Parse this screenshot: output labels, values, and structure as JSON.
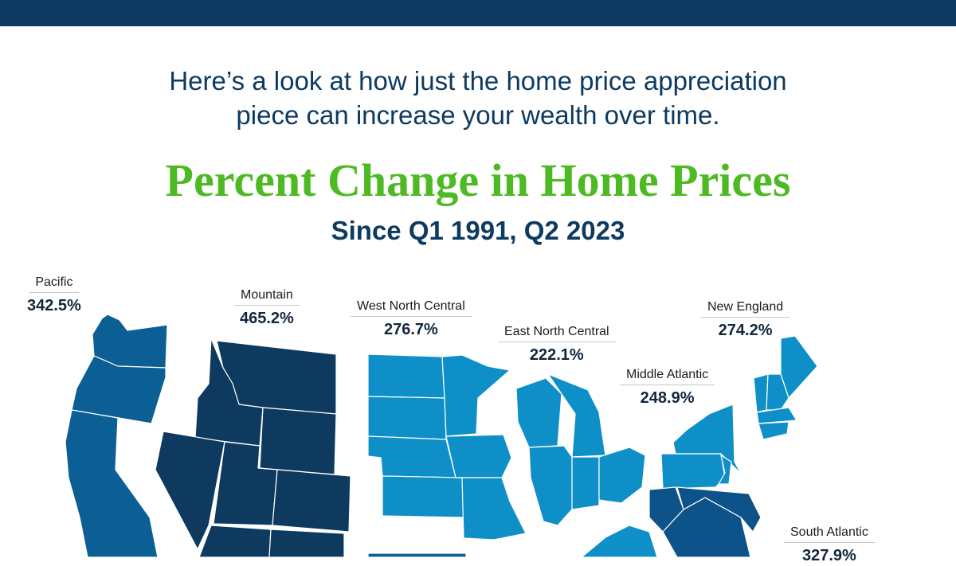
{
  "header": {
    "intro_line1": "Here’s a look at how just the home price appreciation",
    "intro_line2": "piece can increase your wealth over time.",
    "title": "Percent Change in Home Prices",
    "subtitle": "Since Q1 1991, Q2 2023"
  },
  "regions": [
    {
      "id": "pacific",
      "name": "Pacific",
      "value": "342.5%"
    },
    {
      "id": "mountain",
      "name": "Mountain",
      "value": "465.2%"
    },
    {
      "id": "west-north-central",
      "name": "West North Central",
      "value": "276.7%"
    },
    {
      "id": "east-north-central",
      "name": "East North Central",
      "value": "222.1%"
    },
    {
      "id": "middle-atlantic",
      "name": "Middle Atlantic",
      "value": "248.9%"
    },
    {
      "id": "new-england",
      "name": "New England",
      "value": "274.2%"
    },
    {
      "id": "south-atlantic",
      "name": "South Atlantic",
      "value": "327.9%"
    }
  ],
  "colors": {
    "bar": "#0d3a60",
    "title": "#4dba24",
    "pacific": "#0b5f94",
    "mountain": "#0e3a5f",
    "west_north_central": "#0f8fc7",
    "east_north_central": "#0f8fc7",
    "middle_atlantic": "#0f8fc7",
    "new_england": "#0f8fc7",
    "south_atlantic": "#0d5288",
    "border": "#ffffff"
  }
}
